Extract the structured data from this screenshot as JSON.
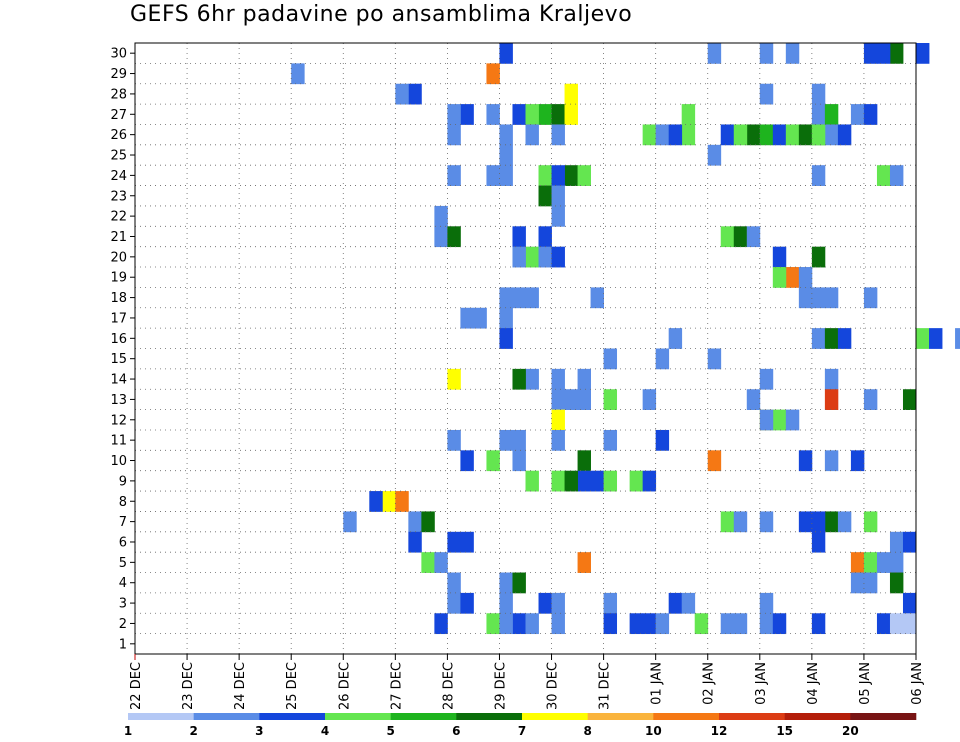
{
  "chart_data": {
    "type": "heatmap",
    "title": "GEFS 6hr padavine po ansamblima Kraljevo",
    "xlabel": "",
    "ylabel": "",
    "x_tick_labels": [
      "22 DEC",
      "23 DEC",
      "24 DEC",
      "25 DEC",
      "26 DEC",
      "27 DEC",
      "28 DEC",
      "29 DEC",
      "30 DEC",
      "31 DEC",
      "01 JAN",
      "02 JAN",
      "03 JAN",
      "04 JAN",
      "05 JAN",
      "06 JAN"
    ],
    "y_tick_labels": [
      1,
      2,
      3,
      4,
      5,
      6,
      7,
      8,
      9,
      10,
      11,
      12,
      13,
      14,
      15,
      16,
      17,
      18,
      19,
      20,
      21,
      22,
      23,
      24,
      25,
      26,
      27,
      28,
      29,
      30
    ],
    "x_range_days": [
      0,
      15
    ],
    "y_range": [
      0,
      30
    ],
    "steps_per_day": 4,
    "grid": "dotted",
    "legend": {
      "position": "bottom",
      "labels": [
        "1",
        "2",
        "3",
        "4",
        "5",
        "6",
        "7",
        "8",
        "10",
        "12",
        "15",
        "20"
      ],
      "colors": [
        "#b4c8f5",
        "#5a8ce6",
        "#1446dc",
        "#64e650",
        "#1eb41e",
        "#0a6e0a",
        "#ffff00",
        "#fab43c",
        "#f57814",
        "#dc3c14",
        "#b41e0a",
        "#781414"
      ]
    },
    "cells": [
      [
        30,
        7,
        0
      ],
      [
        30,
        11,
        6
      ],
      [
        30,
        11,
        0
      ],
      [
        30,
        12,
        0
      ],
      [
        30,
        14,
        0
      ],
      [
        30,
        14,
        2
      ],
      [
        30,
        14,
        4
      ],
      [
        30,
        14,
        1
      ],
      [
        29,
        3,
        0
      ],
      [
        29,
        5,
        7
      ],
      [
        28,
        5,
        1
      ],
      [
        28,
        5,
        0
      ],
      [
        28,
        7,
        5
      ],
      [
        28,
        12,
        0
      ],
      [
        28,
        13,
        0
      ],
      [
        27,
        6,
        1
      ],
      [
        27,
        6,
        0
      ],
      [
        27,
        6,
        3
      ],
      [
        27,
        7,
        1
      ],
      [
        27,
        7,
        3
      ],
      [
        27,
        7,
        4
      ],
      [
        27,
        7,
        5
      ],
      [
        27,
        7,
        2
      ],
      [
        27,
        10,
        2
      ],
      [
        27,
        13,
        0
      ],
      [
        27,
        13,
        3
      ],
      [
        27,
        13,
        1
      ],
      [
        27,
        14,
        0
      ],
      [
        26,
        6,
        0
      ],
      [
        26,
        7,
        0
      ],
      [
        26,
        7,
        2
      ],
      [
        26,
        8,
        0
      ],
      [
        26,
        9,
        3
      ],
      [
        26,
        10,
        0
      ],
      [
        26,
        10,
        2
      ],
      [
        26,
        10,
        1
      ],
      [
        26,
        11,
        1
      ],
      [
        26,
        11,
        3
      ],
      [
        26,
        11,
        2
      ],
      [
        26,
        11,
        4
      ],
      [
        26,
        12,
        1
      ],
      [
        26,
        12,
        2
      ],
      [
        26,
        12,
        3
      ],
      [
        26,
        12,
        4
      ],
      [
        26,
        13,
        1
      ],
      [
        26,
        13,
        0
      ],
      [
        26,
        13,
        2
      ],
      [
        25,
        7,
        0
      ],
      [
        25,
        11,
        0
      ],
      [
        24,
        6,
        0
      ],
      [
        24,
        6,
        3
      ],
      [
        24,
        7,
        0
      ],
      [
        24,
        7,
        3
      ],
      [
        24,
        7,
        5
      ],
      [
        24,
        8,
        2
      ],
      [
        24,
        8,
        0
      ],
      [
        24,
        13,
        0
      ],
      [
        24,
        14,
        1
      ],
      [
        24,
        14,
        2
      ],
      [
        23,
        7,
        3
      ],
      [
        23,
        8,
        0
      ],
      [
        22,
        5,
        3
      ],
      [
        22,
        8,
        0
      ],
      [
        21,
        5,
        3
      ],
      [
        21,
        6,
        0
      ],
      [
        21,
        7,
        3
      ],
      [
        21,
        7,
        1
      ],
      [
        21,
        11,
        1
      ],
      [
        21,
        11,
        2
      ],
      [
        21,
        11,
        3
      ],
      [
        20,
        7,
        2
      ],
      [
        20,
        7,
        1
      ],
      [
        20,
        7,
        3
      ],
      [
        20,
        8,
        0
      ],
      [
        20,
        12,
        1
      ],
      [
        20,
        13,
        0
      ],
      [
        19,
        12,
        2
      ],
      [
        19,
        12,
        1
      ],
      [
        19,
        12,
        3
      ],
      [
        18,
        7,
        0
      ],
      [
        18,
        7,
        1
      ],
      [
        18,
        7,
        2
      ],
      [
        18,
        8,
        3
      ],
      [
        18,
        12,
        3
      ],
      [
        18,
        12,
        4
      ],
      [
        18,
        13,
        1
      ],
      [
        18,
        14,
        0
      ],
      [
        17,
        6,
        1
      ],
      [
        17,
        6,
        2
      ],
      [
        17,
        7,
        0
      ],
      [
        16,
        7,
        0
      ],
      [
        16,
        10,
        1
      ],
      [
        16,
        13,
        0
      ],
      [
        16,
        13,
        1
      ],
      [
        16,
        13,
        2
      ],
      [
        16,
        15,
        0
      ],
      [
        16,
        15,
        1
      ],
      [
        16,
        15,
        3
      ],
      [
        15,
        9,
        0
      ],
      [
        15,
        10,
        0
      ],
      [
        15,
        11,
        0
      ],
      [
        14,
        6,
        0
      ],
      [
        14,
        7,
        2
      ],
      [
        14,
        7,
        1
      ],
      [
        14,
        8,
        0
      ],
      [
        14,
        8,
        2
      ],
      [
        14,
        12,
        0
      ],
      [
        14,
        13,
        1
      ],
      [
        13,
        8,
        0
      ],
      [
        13,
        8,
        1
      ],
      [
        13,
        8,
        2
      ],
      [
        13,
        9,
        0
      ],
      [
        13,
        9,
        3
      ],
      [
        13,
        11,
        3
      ],
      [
        13,
        13,
        1
      ],
      [
        13,
        14,
        0
      ],
      [
        13,
        14,
        3
      ],
      [
        12,
        8,
        0
      ],
      [
        12,
        11,
        4
      ],
      [
        12,
        11,
        5
      ],
      [
        12,
        11,
        6
      ],
      [
        12,
        12,
        0
      ],
      [
        11,
        6,
        0
      ],
      [
        11,
        7,
        1
      ],
      [
        11,
        7,
        0
      ],
      [
        11,
        8,
        0
      ],
      [
        11,
        9,
        0
      ],
      [
        11,
        10,
        0
      ],
      [
        10,
        6,
        1
      ],
      [
        10,
        6,
        3
      ],
      [
        10,
        7,
        1
      ],
      [
        10,
        8,
        2
      ],
      [
        10,
        11,
        0
      ],
      [
        10,
        12,
        3
      ],
      [
        10,
        12,
        7
      ],
      [
        10,
        13,
        1
      ],
      [
        9,
        7,
        2
      ],
      [
        9,
        8,
        0
      ],
      [
        9,
        8,
        2
      ],
      [
        9,
        8,
        1
      ],
      [
        9,
        8,
        3
      ],
      [
        9,
        8,
        4
      ],
      [
        9,
        9,
        2
      ],
      [
        9,
        9,
        3
      ],
      [
        8,
        4,
        3
      ],
      [
        8,
        4,
        2
      ],
      [
        8,
        5,
        0
      ],
      [
        7,
        4,
        0
      ],
      [
        7,
        5,
        1
      ],
      [
        7,
        5,
        2
      ],
      [
        7,
        11,
        1
      ],
      [
        7,
        11,
        2
      ],
      [
        7,
        12,
        3
      ],
      [
        7,
        12,
        0
      ],
      [
        7,
        13,
        1
      ],
      [
        7,
        13,
        0
      ],
      [
        7,
        13,
        2
      ],
      [
        7,
        14,
        0
      ],
      [
        6,
        5,
        1
      ],
      [
        6,
        6,
        0
      ],
      [
        6,
        6,
        1
      ],
      [
        6,
        13,
        0
      ],
      [
        6,
        14,
        2
      ],
      [
        6,
        14,
        3
      ],
      [
        5,
        5,
        2
      ],
      [
        5,
        5,
        3
      ],
      [
        5,
        8,
        2
      ],
      [
        5,
        13,
        3
      ],
      [
        5,
        14,
        0
      ],
      [
        5,
        14,
        1
      ],
      [
        5,
        14,
        2
      ],
      [
        4,
        6,
        0
      ],
      [
        4,
        7,
        0
      ],
      [
        4,
        7,
        1
      ],
      [
        4,
        13,
        3
      ],
      [
        4,
        14,
        0
      ],
      [
        4,
        14,
        2
      ],
      [
        3,
        6,
        0
      ],
      [
        3,
        6,
        1
      ],
      [
        3,
        7,
        0
      ],
      [
        3,
        7,
        3
      ],
      [
        3,
        8,
        0
      ],
      [
        3,
        9,
        0
      ],
      [
        3,
        10,
        1
      ],
      [
        3,
        10,
        2
      ],
      [
        3,
        12,
        0
      ],
      [
        3,
        14,
        3
      ],
      [
        2,
        5,
        3
      ],
      [
        2,
        6,
        3
      ],
      [
        2,
        7,
        1
      ],
      [
        2,
        7,
        2
      ],
      [
        2,
        7,
        0
      ],
      [
        2,
        8,
        0
      ],
      [
        2,
        9,
        0
      ],
      [
        2,
        9,
        2
      ],
      [
        2,
        9,
        3
      ],
      [
        2,
        10,
        0
      ],
      [
        2,
        10,
        3
      ],
      [
        2,
        11,
        1
      ],
      [
        2,
        11,
        2
      ],
      [
        2,
        12,
        0
      ],
      [
        2,
        12,
        1
      ],
      [
        2,
        13,
        0
      ],
      [
        2,
        14,
        1
      ],
      [
        2,
        14,
        2
      ],
      [
        2,
        14,
        3
      ]
    ],
    "cell_values": [
      2,
      1,
      1,
      1,
      2,
      5,
      2,
      2,
      1,
      8,
      2,
      1,
      6,
      1,
      1,
      2,
      1,
      1,
      2,
      4,
      5,
      6,
      3,
      3,
      1,
      1,
      4,
      2,
      1,
      1,
      1,
      1,
      3,
      1,
      3,
      2,
      2,
      5,
      3,
      4,
      2,
      3,
      5,
      4,
      1,
      3,
      2,
      1,
      1,
      1,
      1,
      1,
      3,
      5,
      3,
      2,
      1,
      3,
      1,
      5,
      1,
      1,
      1,
      1,
      5,
      2,
      2,
      3,
      5,
      1,
      3,
      1,
      1,
      2,
      2,
      5,
      8,
      3,
      1,
      1,
      1,
      1,
      1,
      1,
      1,
      1,
      1,
      1,
      1,
      1,
      2,
      1,
      1,
      5,
      2,
      3,
      2,
      1,
      1,
      1,
      1,
      6,
      1,
      5,
      1,
      1,
      1,
      1,
      1,
      1,
      1,
      3,
      1,
      1,
      9,
      1,
      5,
      6,
      6,
      3,
      1,
      1,
      1,
      1,
      1,
      1,
      1,
      2,
      2,
      3,
      1,
      5,
      8,
      2,
      2,
      1,
      3,
      3,
      2,
      5,
      2,
      3,
      3,
      2,
      6,
      2,
      8,
      1,
      1,
      5,
      3,
      1,
      2,
      1,
      5,
      2,
      1,
      3,
      2,
      2,
      2,
      2,
      1,
      2,
      3,
      1,
      8,
      8,
      3,
      1,
      1,
      1,
      1,
      5,
      1,
      1,
      5,
      1,
      2,
      1,
      2,
      1,
      1,
      2,
      1,
      1,
      2,
      2,
      3,
      2,
      1,
      1,
      1,
      2,
      2,
      2,
      1,
      3,
      1,
      1,
      1,
      2,
      2,
      2
    ]
  }
}
